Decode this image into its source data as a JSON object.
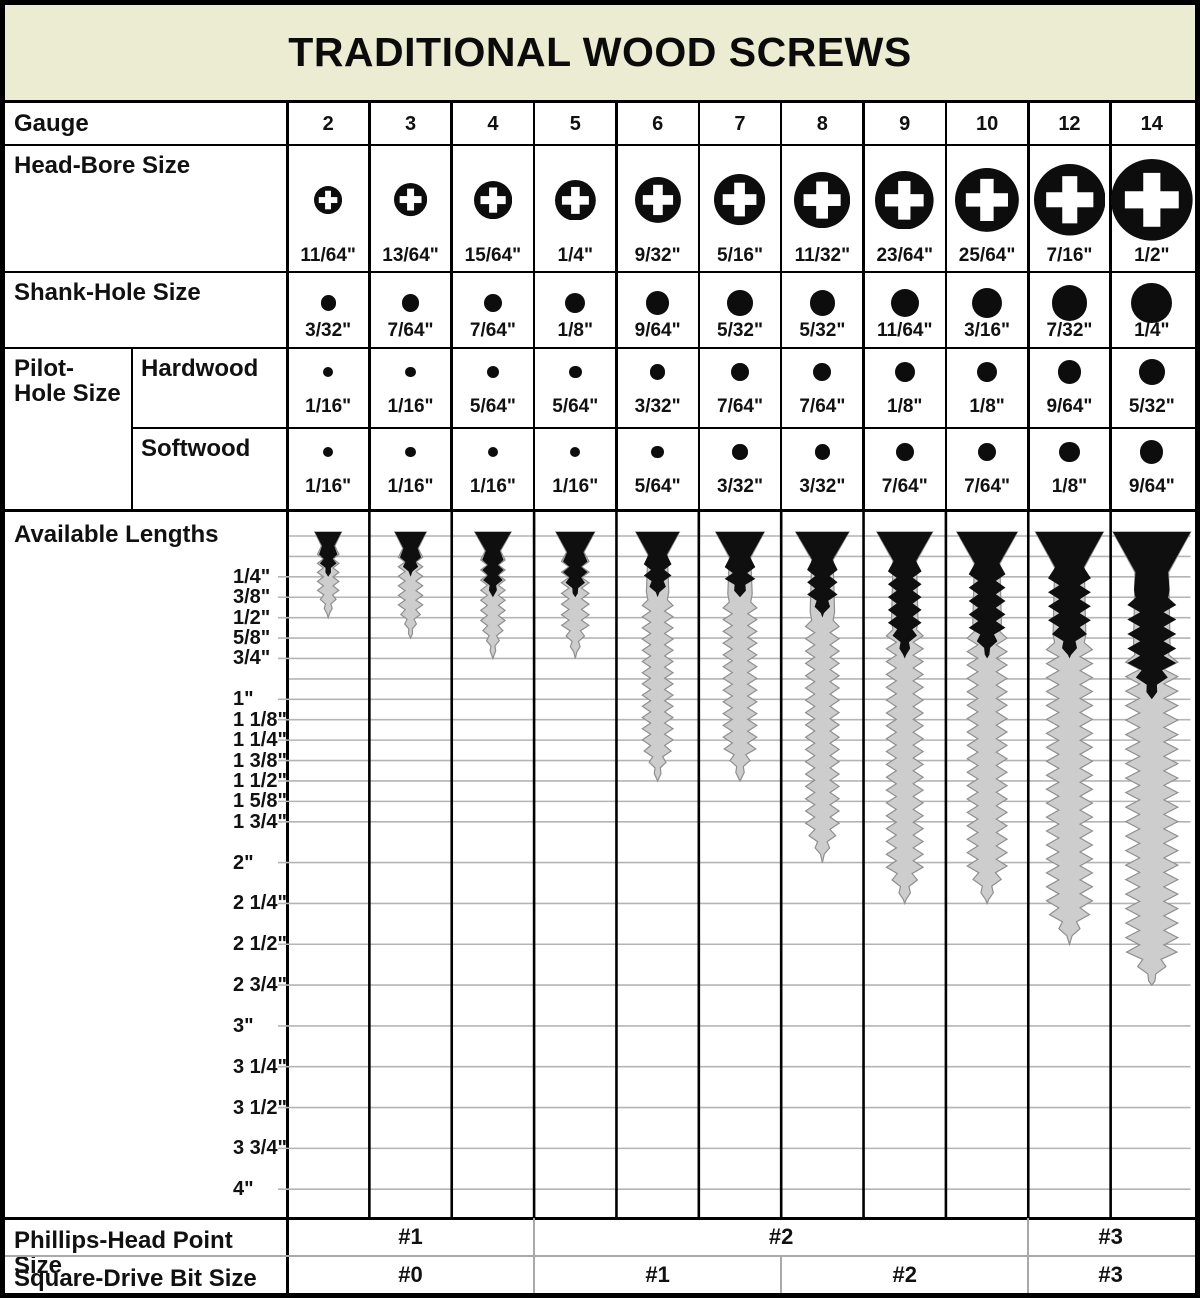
{
  "title": "TRADITIONAL WOOD SCREWS",
  "row_labels": {
    "gauge": "Gauge",
    "head_bore": "Head-Bore Size",
    "shank_hole": "Shank-Hole Size",
    "pilot_hole": "Pilot-Hole Size",
    "hardwood": "Hardwood",
    "softwood": "Softwood",
    "available_lengths": "Available Lengths",
    "phillips": "Phillips-Head Point Size",
    "square_drive": "Square-Drive Bit Size"
  },
  "colors": {
    "title_bg": "#ececd2",
    "screw_black": "#0f0f0f",
    "screw_gray": "#cdcdcd",
    "screw_gray_stroke": "#8f8f8f",
    "gridline": "#b4b4b4",
    "icon_black": "#0d0d0d",
    "cross_white": "#ffffff"
  },
  "chart_data": {
    "type": "table",
    "title": "TRADITIONAL WOOD SCREWS",
    "gauges": [
      "2",
      "3",
      "4",
      "5",
      "6",
      "7",
      "8",
      "9",
      "10",
      "12",
      "14"
    ],
    "head_bore": [
      {
        "label": "11/64\"",
        "in": 0.172
      },
      {
        "label": "13/64\"",
        "in": 0.203
      },
      {
        "label": "15/64\"",
        "in": 0.234
      },
      {
        "label": "1/4\"",
        "in": 0.25
      },
      {
        "label": "9/32\"",
        "in": 0.281
      },
      {
        "label": "5/16\"",
        "in": 0.313
      },
      {
        "label": "11/32\"",
        "in": 0.344
      },
      {
        "label": "23/64\"",
        "in": 0.359
      },
      {
        "label": "25/64\"",
        "in": 0.391
      },
      {
        "label": "7/16\"",
        "in": 0.438
      },
      {
        "label": "1/2\"",
        "in": 0.5
      }
    ],
    "shank_hole": [
      {
        "label": "3/32\"",
        "in": 0.094
      },
      {
        "label": "7/64\"",
        "in": 0.109
      },
      {
        "label": "7/64\"",
        "in": 0.109
      },
      {
        "label": "1/8\"",
        "in": 0.125
      },
      {
        "label": "9/64\"",
        "in": 0.141
      },
      {
        "label": "5/32\"",
        "in": 0.156
      },
      {
        "label": "5/32\"",
        "in": 0.156
      },
      {
        "label": "11/64\"",
        "in": 0.172
      },
      {
        "label": "3/16\"",
        "in": 0.188
      },
      {
        "label": "7/32\"",
        "in": 0.219
      },
      {
        "label": "1/4\"",
        "in": 0.25
      }
    ],
    "pilot_hardwood": [
      {
        "label": "1/16\"",
        "in": 0.063
      },
      {
        "label": "1/16\"",
        "in": 0.063
      },
      {
        "label": "5/64\"",
        "in": 0.078
      },
      {
        "label": "5/64\"",
        "in": 0.078
      },
      {
        "label": "3/32\"",
        "in": 0.094
      },
      {
        "label": "7/64\"",
        "in": 0.109
      },
      {
        "label": "7/64\"",
        "in": 0.109
      },
      {
        "label": "1/8\"",
        "in": 0.125
      },
      {
        "label": "1/8\"",
        "in": 0.125
      },
      {
        "label": "9/64\"",
        "in": 0.141
      },
      {
        "label": "5/32\"",
        "in": 0.156
      }
    ],
    "pilot_softwood": [
      {
        "label": "1/16\"",
        "in": 0.063
      },
      {
        "label": "1/16\"",
        "in": 0.063
      },
      {
        "label": "1/16\"",
        "in": 0.063
      },
      {
        "label": "1/16\"",
        "in": 0.063
      },
      {
        "label": "5/64\"",
        "in": 0.078
      },
      {
        "label": "3/32\"",
        "in": 0.094
      },
      {
        "label": "3/32\"",
        "in": 0.094
      },
      {
        "label": "7/64\"",
        "in": 0.109
      },
      {
        "label": "7/64\"",
        "in": 0.109
      },
      {
        "label": "1/8\"",
        "in": 0.125
      },
      {
        "label": "9/64\"",
        "in": 0.141
      }
    ],
    "length_labels": [
      {
        "label": "1/4\"",
        "in": 0.25
      },
      {
        "label": "3/8\"",
        "in": 0.375
      },
      {
        "label": "1/2\"",
        "in": 0.5
      },
      {
        "label": "5/8\"",
        "in": 0.625
      },
      {
        "label": "3/4\"",
        "in": 0.75
      },
      {
        "label": "1\"",
        "in": 1
      },
      {
        "label": "1 1/8\"",
        "in": 1.125
      },
      {
        "label": "1 1/4\"",
        "in": 1.25
      },
      {
        "label": "1 3/8\"",
        "in": 1.375
      },
      {
        "label": "1 1/2\"",
        "in": 1.5
      },
      {
        "label": "1 5/8\"",
        "in": 1.625
      },
      {
        "label": "1 3/4\"",
        "in": 1.75
      },
      {
        "label": "2\"",
        "in": 2
      },
      {
        "label": "2 1/4\"",
        "in": 2.25
      },
      {
        "label": "2 1/2\"",
        "in": 2.5
      },
      {
        "label": "2 3/4\"",
        "in": 2.75
      },
      {
        "label": "3\"",
        "in": 3
      },
      {
        "label": "3 1/4\"",
        "in": 3.25
      },
      {
        "label": "3 1/2\"",
        "in": 3.5
      },
      {
        "label": "3 3/4\"",
        "in": 3.75
      },
      {
        "label": "4\"",
        "in": 4
      }
    ],
    "gridlines_in": [
      0,
      0.125,
      0.25,
      0.375,
      0.5,
      0.625,
      0.75,
      0.875,
      1,
      1.125,
      1.25,
      1.375,
      1.5,
      1.625,
      1.75,
      2,
      2.25,
      2.5,
      2.75,
      3,
      3.25,
      3.5,
      3.75,
      4
    ],
    "available_lengths": [
      {
        "gauge": "2",
        "min_label": "1/4\"",
        "max_label": "1/2\"",
        "min_in": 0.25,
        "max_in": 0.5
      },
      {
        "gauge": "3",
        "min_label": "1/4\"",
        "max_label": "5/8\"",
        "min_in": 0.25,
        "max_in": 0.625
      },
      {
        "gauge": "4",
        "min_label": "3/8\"",
        "max_label": "3/4\"",
        "min_in": 0.375,
        "max_in": 0.75
      },
      {
        "gauge": "5",
        "min_label": "3/8\"",
        "max_label": "3/4\"",
        "min_in": 0.375,
        "max_in": 0.75
      },
      {
        "gauge": "6",
        "min_label": "3/8\"",
        "max_label": "1 1/2\"",
        "min_in": 0.375,
        "max_in": 1.5
      },
      {
        "gauge": "7",
        "min_label": "3/8\"",
        "max_label": "1 1/2\"",
        "min_in": 0.375,
        "max_in": 1.5
      },
      {
        "gauge": "8",
        "min_label": "1/2\"",
        "max_label": "2\"",
        "min_in": 0.5,
        "max_in": 2
      },
      {
        "gauge": "9",
        "min_label": "3/4\"",
        "max_label": "2 1/4\"",
        "min_in": 0.75,
        "max_in": 2.25
      },
      {
        "gauge": "10",
        "min_label": "3/4\"",
        "max_label": "2 1/4\"",
        "min_in": 0.75,
        "max_in": 2.25
      },
      {
        "gauge": "12",
        "min_label": "3/4\"",
        "max_label": "2 1/2\"",
        "min_in": 0.75,
        "max_in": 2.5
      },
      {
        "gauge": "14",
        "min_label": "1\"",
        "max_label": "2 3/4\"",
        "min_in": 1,
        "max_in": 2.75
      }
    ],
    "phillips_point": [
      {
        "label": "#1",
        "cols": [
          0,
          2
        ]
      },
      {
        "label": "#2",
        "cols": [
          3,
          8
        ]
      },
      {
        "label": "#3",
        "cols": [
          9,
          10
        ]
      }
    ],
    "square_drive": [
      {
        "label": "#0",
        "cols": [
          0,
          2
        ]
      },
      {
        "label": "#1",
        "cols": [
          3,
          5
        ]
      },
      {
        "label": "#2",
        "cols": [
          6,
          8
        ]
      },
      {
        "label": "#3",
        "cols": [
          9,
          10
        ]
      }
    ]
  }
}
